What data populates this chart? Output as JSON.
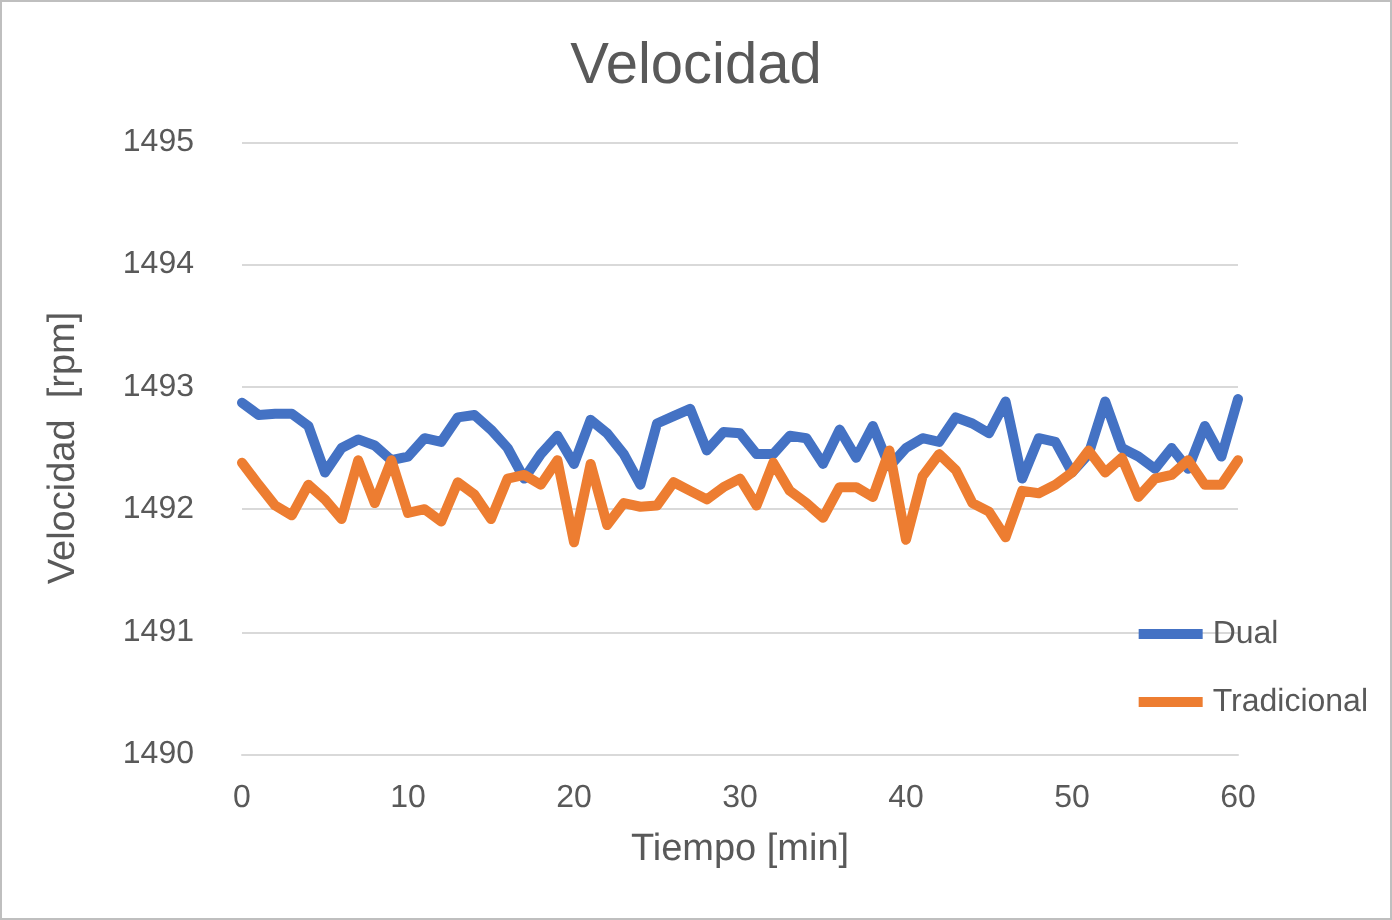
{
  "chart_data": {
    "type": "line",
    "title": "Velocidad",
    "xlabel": "Tiempo [min]",
    "ylabel": "Velocidad  [rpm]",
    "x": [
      0,
      1,
      2,
      3,
      4,
      5,
      6,
      7,
      8,
      9,
      10,
      11,
      12,
      13,
      14,
      15,
      16,
      17,
      18,
      19,
      20,
      21,
      22,
      23,
      24,
      25,
      26,
      27,
      28,
      29,
      30,
      31,
      32,
      33,
      34,
      35,
      36,
      37,
      38,
      39,
      40,
      41,
      42,
      43,
      44,
      45,
      46,
      47,
      48,
      49,
      50,
      51,
      52,
      53,
      54,
      55,
      56,
      57,
      58,
      59,
      60
    ],
    "series": [
      {
        "name": "Dual",
        "color": "#4472c4",
        "values": [
          1492.87,
          1492.77,
          1492.78,
          1492.78,
          1492.68,
          1492.3,
          1492.5,
          1492.57,
          1492.52,
          1492.4,
          1492.43,
          1492.58,
          1492.55,
          1492.75,
          1492.77,
          1492.65,
          1492.5,
          1492.25,
          1492.45,
          1492.6,
          1492.37,
          1492.73,
          1492.62,
          1492.45,
          1492.2,
          1492.7,
          1492.76,
          1492.82,
          1492.48,
          1492.63,
          1492.62,
          1492.45,
          1492.45,
          1492.6,
          1492.58,
          1492.37,
          1492.65,
          1492.42,
          1492.68,
          1492.35,
          1492.5,
          1492.58,
          1492.55,
          1492.75,
          1492.7,
          1492.62,
          1492.88,
          1492.25,
          1492.58,
          1492.55,
          1492.3,
          1492.45,
          1492.88,
          1492.5,
          1492.43,
          1492.33,
          1492.5,
          1492.33,
          1492.68,
          1492.43,
          1492.9
        ]
      },
      {
        "name": "Tradicional",
        "color": "#ed7d31",
        "values": [
          1492.38,
          1492.2,
          1492.03,
          1491.95,
          1492.2,
          1492.08,
          1491.92,
          1492.4,
          1492.05,
          1492.4,
          1491.97,
          1492.0,
          1491.9,
          1492.22,
          1492.12,
          1491.92,
          1492.25,
          1492.28,
          1492.2,
          1492.4,
          1491.73,
          1492.37,
          1491.87,
          1492.05,
          1492.02,
          1492.03,
          1492.22,
          1492.15,
          1492.08,
          1492.18,
          1492.25,
          1492.03,
          1492.38,
          1492.15,
          1492.05,
          1491.93,
          1492.18,
          1492.18,
          1492.1,
          1492.48,
          1491.75,
          1492.27,
          1492.45,
          1492.32,
          1492.05,
          1491.98,
          1491.77,
          1492.15,
          1492.13,
          1492.2,
          1492.3,
          1492.48,
          1492.3,
          1492.42,
          1492.1,
          1492.25,
          1492.28,
          1492.4,
          1492.2,
          1492.2,
          1492.4
        ]
      }
    ],
    "xlim": [
      0,
      60
    ],
    "xticks": [
      0,
      10,
      20,
      30,
      40,
      50,
      60
    ],
    "ylim": [
      1490,
      1495
    ],
    "yticks": [
      1490,
      1491,
      1492,
      1493,
      1494,
      1495
    ],
    "grid": "y",
    "legend": "bottom right",
    "marker": "none",
    "line_style": "solid"
  }
}
